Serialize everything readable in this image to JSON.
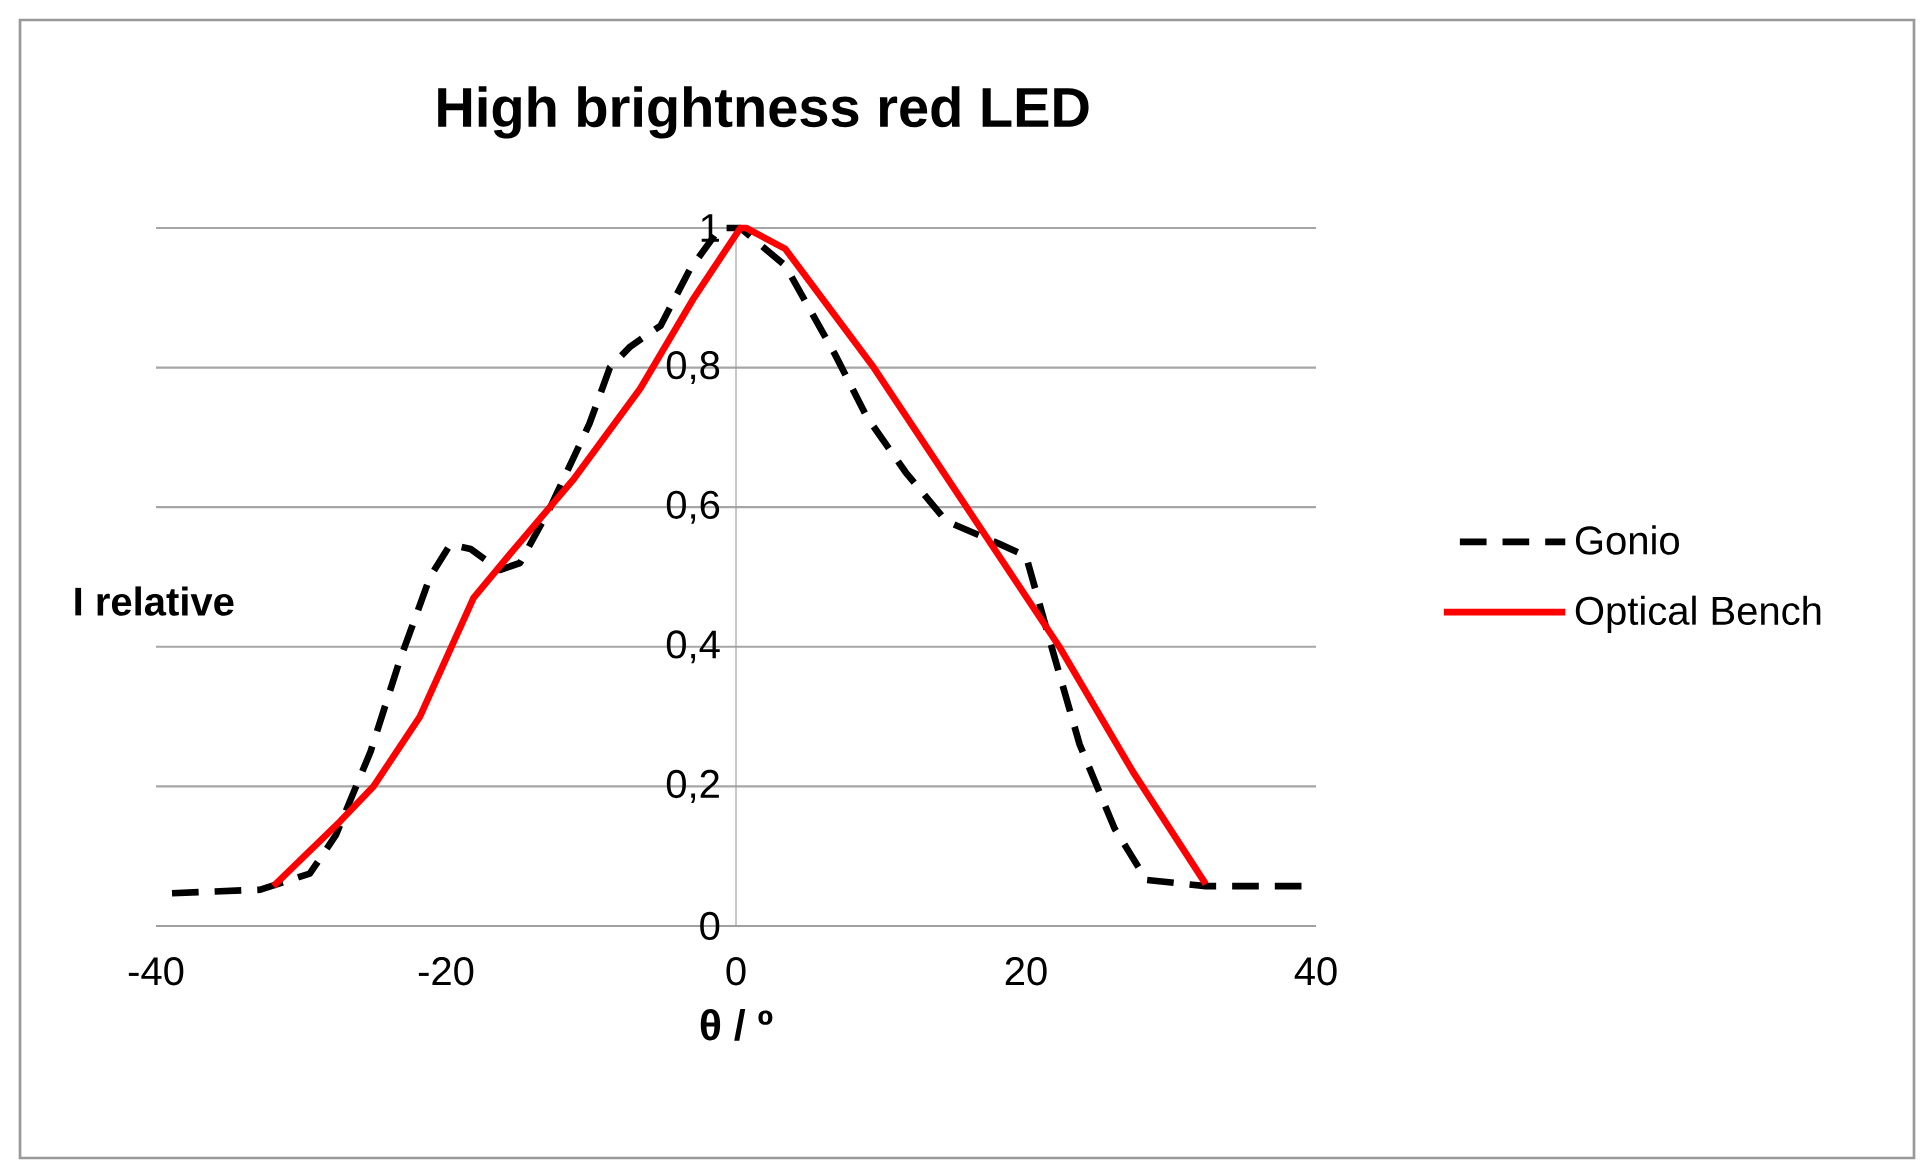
{
  "chart_data": {
    "type": "line",
    "title": "High brightness red LED",
    "xlabel": "θ / º",
    "ylabel": "I relative",
    "xlim": [
      -40,
      40
    ],
    "xticks": [
      -40,
      -20,
      0,
      20,
      40
    ],
    "ylim": [
      0,
      1
    ],
    "yticks": [
      0,
      {
        "value": 0.2,
        "label": "0,2"
      },
      {
        "value": 0.4,
        "label": "0,4"
      },
      {
        "value": 0.6,
        "label": "0,6"
      },
      {
        "value": 0.8,
        "label": "0,8"
      },
      1
    ],
    "grid": "y",
    "legend": "right",
    "series": [
      {
        "name": "Gonio",
        "color": "#000000",
        "line_style": "dashed",
        "x": [
          -40,
          -32.8,
          -29.4,
          -27.6,
          -25.2,
          -23.2,
          -21.1,
          -19.7,
          -18.3,
          -16.3,
          -14.9,
          -12.8,
          -10.1,
          -8.7,
          -7.3,
          -5.2,
          -3.2,
          -1.1,
          0.3,
          3.4,
          6.8,
          9.0,
          11.7,
          14.5,
          18.2,
          20.0,
          21.9,
          23.7,
          26.1,
          28.3,
          32.4,
          39.3
        ],
        "values": [
          0.046,
          0.052,
          0.075,
          0.13,
          0.25,
          0.38,
          0.5,
          0.547,
          0.54,
          0.51,
          0.52,
          0.6,
          0.72,
          0.8,
          0.83,
          0.86,
          0.94,
          1.0,
          1.0,
          0.946,
          0.82,
          0.73,
          0.65,
          0.58,
          0.547,
          0.53,
          0.39,
          0.26,
          0.14,
          0.066,
          0.057,
          0.057
        ]
      },
      {
        "name": "Optical Bench",
        "color": "#ff0000",
        "line_style": "solid",
        "x": [
          -31.9,
          -27.3,
          -25.0,
          -21.8,
          -18.1,
          -15.3,
          -11.2,
          -6.6,
          -2.9,
          0.3,
          0.7,
          3.4,
          9.5,
          15.9,
          22.3,
          27.4,
          32.4
        ],
        "values": [
          0.057,
          0.15,
          0.2,
          0.3,
          0.47,
          0.54,
          0.64,
          0.77,
          0.9,
          1.0,
          1.0,
          0.97,
          0.8,
          0.6,
          0.4,
          0.22,
          0.06
        ]
      }
    ]
  }
}
